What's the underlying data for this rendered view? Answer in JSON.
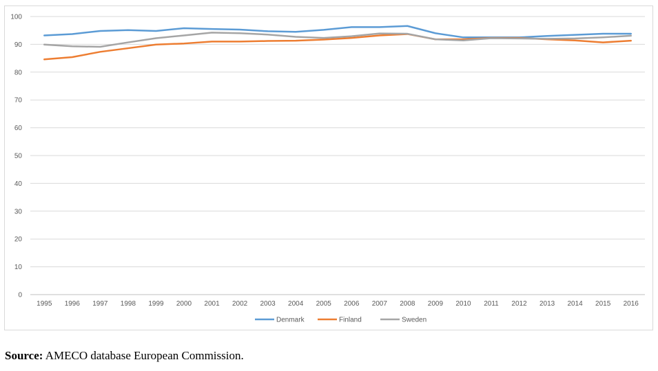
{
  "chart_data": {
    "type": "line",
    "title": "",
    "xlabel": "",
    "ylabel": "",
    "ylim": [
      0,
      100
    ],
    "yticks": [
      0,
      10,
      20,
      30,
      40,
      50,
      60,
      70,
      80,
      90,
      100
    ],
    "grid": true,
    "legend": "bottom-center",
    "categories": [
      "1995",
      "1996",
      "1997",
      "1998",
      "1999",
      "2000",
      "2001",
      "2002",
      "2003",
      "2004",
      "2005",
      "2006",
      "2007",
      "2008",
      "2009",
      "2010",
      "2011",
      "2012",
      "2013",
      "2014",
      "2015",
      "2016"
    ],
    "series": [
      {
        "name": "Denmark",
        "color": "#5b9bd5",
        "values": [
          93.2,
          93.7,
          94.8,
          95.1,
          94.8,
          95.8,
          95.5,
          95.3,
          94.7,
          94.5,
          95.2,
          96.2,
          96.2,
          96.6,
          94.0,
          92.5,
          92.5,
          92.5,
          93.0,
          93.4,
          93.8,
          93.8
        ]
      },
      {
        "name": "Finland",
        "color": "#ed7d31",
        "values": [
          84.6,
          85.4,
          87.3,
          88.6,
          89.9,
          90.3,
          91.0,
          91.0,
          91.2,
          91.3,
          91.7,
          92.3,
          93.2,
          93.7,
          91.8,
          91.8,
          92.3,
          92.3,
          91.8,
          91.4,
          90.7,
          91.3
        ]
      },
      {
        "name": "Sweden",
        "color": "#a5a5a5",
        "values": [
          89.9,
          89.3,
          89.1,
          90.7,
          92.2,
          93.2,
          94.2,
          94.0,
          93.5,
          92.7,
          92.3,
          92.9,
          93.9,
          93.8,
          91.8,
          91.4,
          92.2,
          92.1,
          92.0,
          92.1,
          92.5,
          93.1
        ]
      }
    ]
  },
  "source": {
    "label": "Source:",
    "text": " AMECO database European Commission."
  }
}
